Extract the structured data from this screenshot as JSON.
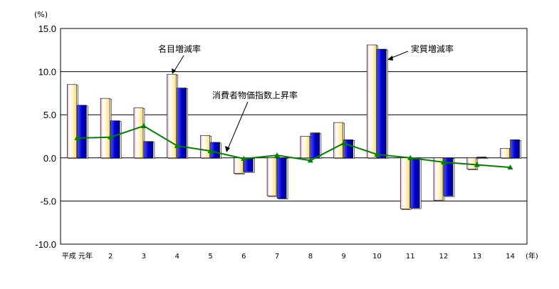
{
  "chart_data": {
    "type": "bar",
    "title": "",
    "y_unit_label": "(%)",
    "x_unit_label": "(年)",
    "categories": [
      "平成 元年",
      "2",
      "3",
      "4",
      "5",
      "6",
      "7",
      "8",
      "9",
      "10",
      "11",
      "12",
      "13",
      "14"
    ],
    "ylim": [
      -10.0,
      15.0
    ],
    "yticks": [
      "15.0",
      "10.0",
      "5.0",
      "0.0",
      "-5.0",
      "-10.0"
    ],
    "ytick_values": [
      15,
      10,
      5,
      0,
      -5,
      -10
    ],
    "grid": true,
    "series": [
      {
        "name": "名目増減率",
        "kind": "bar",
        "color": "#FFF0B8",
        "values": [
          8.5,
          6.9,
          5.8,
          9.7,
          2.6,
          -1.8,
          -4.4,
          2.5,
          4.1,
          13.1,
          -5.9,
          -4.9,
          -1.3,
          1.1
        ]
      },
      {
        "name": "実質増減率",
        "kind": "bar",
        "color": "#0000CC",
        "values": [
          6.1,
          4.3,
          1.9,
          8.1,
          1.8,
          -1.6,
          -4.7,
          2.9,
          2.1,
          12.6,
          -5.8,
          -4.4,
          0.1,
          2.1
        ]
      },
      {
        "name": "消費者物価指数上昇率",
        "kind": "line",
        "color": "#008000",
        "values": [
          2.3,
          2.4,
          3.7,
          1.4,
          0.8,
          -0.1,
          0.3,
          -0.3,
          1.7,
          0.4,
          0.0,
          -0.5,
          -0.8,
          -1.1
        ]
      }
    ],
    "annotations": [
      {
        "text": "名目増減率",
        "target": "名目増減率"
      },
      {
        "text": "消費者物価指数上昇率",
        "target": "消費者物価指数上昇率"
      },
      {
        "text": "実質増減率",
        "target": "実質増減率"
      }
    ]
  }
}
